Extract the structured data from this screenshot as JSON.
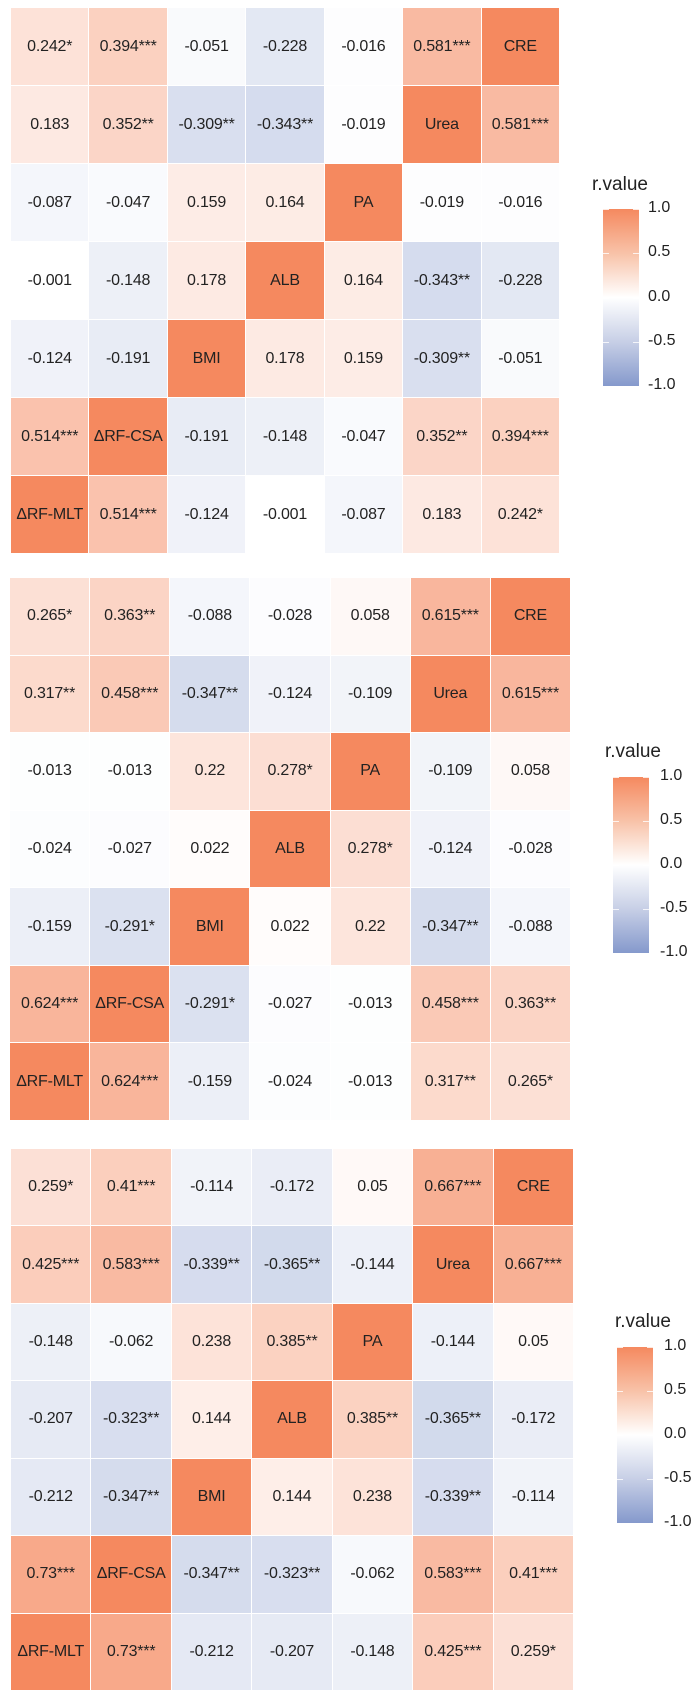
{
  "chart_data": [
    {
      "type": "heatmap",
      "variables": [
        "ΔRF-MLT",
        "ΔRF-CSA",
        "BMI",
        "ALB",
        "PA",
        "Urea",
        "CRE"
      ],
      "row_order": [
        "CRE",
        "Urea",
        "PA",
        "ALB",
        "BMI",
        "ΔRF-CSA",
        "ΔRF-MLT"
      ],
      "cells": [
        [
          "0.242*",
          "0.394***",
          "-0.051",
          "-0.228",
          "-0.016",
          "0.581***",
          "CRE"
        ],
        [
          "0.183",
          "0.352**",
          "-0.309**",
          "-0.343**",
          "-0.019",
          "Urea",
          "0.581***"
        ],
        [
          "-0.087",
          "-0.047",
          "0.159",
          "0.164",
          "PA",
          "-0.019",
          "-0.016"
        ],
        [
          "-0.001",
          "-0.148",
          "0.178",
          "ALB",
          "0.164",
          "-0.343**",
          "-0.228"
        ],
        [
          "-0.124",
          "-0.191",
          "BMI",
          "0.178",
          "0.159",
          "-0.309**",
          "-0.051"
        ],
        [
          "0.514***",
          "ΔRF-CSA",
          "-0.191",
          "-0.148",
          "-0.047",
          "0.352**",
          "0.394***"
        ],
        [
          "ΔRF-MLT",
          "0.514***",
          "-0.124",
          "-0.001",
          "-0.087",
          "0.183",
          "0.242*"
        ]
      ],
      "legend": {
        "title": "r.value",
        "ticks": [
          "1.0",
          "0.5",
          "0.0",
          "-0.5",
          "-1.0"
        ],
        "range": [
          -1,
          1
        ]
      }
    },
    {
      "type": "heatmap",
      "variables": [
        "ΔRF-MLT",
        "ΔRF-CSA",
        "BMI",
        "ALB",
        "PA",
        "Urea",
        "CRE"
      ],
      "row_order": [
        "CRE",
        "Urea",
        "PA",
        "ALB",
        "BMI",
        "ΔRF-CSA",
        "ΔRF-MLT"
      ],
      "cells": [
        [
          "0.265*",
          "0.363**",
          "-0.088",
          "-0.028",
          "0.058",
          "0.615***",
          "CRE"
        ],
        [
          "0.317**",
          "0.458***",
          "-0.347**",
          "-0.124",
          "-0.109",
          "Urea",
          "0.615***"
        ],
        [
          "-0.013",
          "-0.013",
          "0.22",
          "0.278*",
          "PA",
          "-0.109",
          "0.058"
        ],
        [
          "-0.024",
          "-0.027",
          "0.022",
          "ALB",
          "0.278*",
          "-0.124",
          "-0.028"
        ],
        [
          "-0.159",
          "-0.291*",
          "BMI",
          "0.022",
          "0.22",
          "-0.347**",
          "-0.088"
        ],
        [
          "0.624***",
          "ΔRF-CSA",
          "-0.291*",
          "-0.027",
          "-0.013",
          "0.458***",
          "0.363**"
        ],
        [
          "ΔRF-MLT",
          "0.624***",
          "-0.159",
          "-0.024",
          "-0.013",
          "0.317**",
          "0.265*"
        ]
      ],
      "legend": {
        "title": "r.value",
        "ticks": [
          "1.0",
          "0.5",
          "0.0",
          "-0.5",
          "-1.0"
        ],
        "range": [
          -1,
          1
        ]
      }
    },
    {
      "type": "heatmap",
      "variables": [
        "ΔRF-MLT",
        "ΔRF-CSA",
        "BMI",
        "ALB",
        "PA",
        "Urea",
        "CRE"
      ],
      "row_order": [
        "CRE",
        "Urea",
        "PA",
        "ALB",
        "BMI",
        "ΔRF-CSA",
        "ΔRF-MLT"
      ],
      "cells": [
        [
          "0.259*",
          "0.41***",
          "-0.114",
          "-0.172",
          "0.05",
          "0.667***",
          "CRE"
        ],
        [
          "0.425***",
          "0.583***",
          "-0.339**",
          "-0.365**",
          "-0.144",
          "Urea",
          "0.667***"
        ],
        [
          "-0.148",
          "-0.062",
          "0.238",
          "0.385**",
          "PA",
          "-0.144",
          "0.05"
        ],
        [
          "-0.207",
          "-0.323**",
          "0.144",
          "ALB",
          "0.385**",
          "-0.365**",
          "-0.172"
        ],
        [
          "-0.212",
          "-0.347**",
          "BMI",
          "0.144",
          "0.238",
          "-0.339**",
          "-0.114"
        ],
        [
          "0.73***",
          "ΔRF-CSA",
          "-0.347**",
          "-0.323**",
          "-0.062",
          "0.583***",
          "0.41***"
        ],
        [
          "ΔRF-MLT",
          "0.73***",
          "-0.212",
          "-0.207",
          "-0.148",
          "0.425***",
          "0.259*"
        ]
      ],
      "legend": {
        "title": "r.value",
        "ticks": [
          "1.0",
          "0.5",
          "0.0",
          "-0.5",
          "-1.0"
        ],
        "range": [
          -1,
          1
        ]
      }
    }
  ],
  "colors": {
    "positive": "#f5895f",
    "zero": "#ffffff",
    "negative": "#8599cc"
  }
}
